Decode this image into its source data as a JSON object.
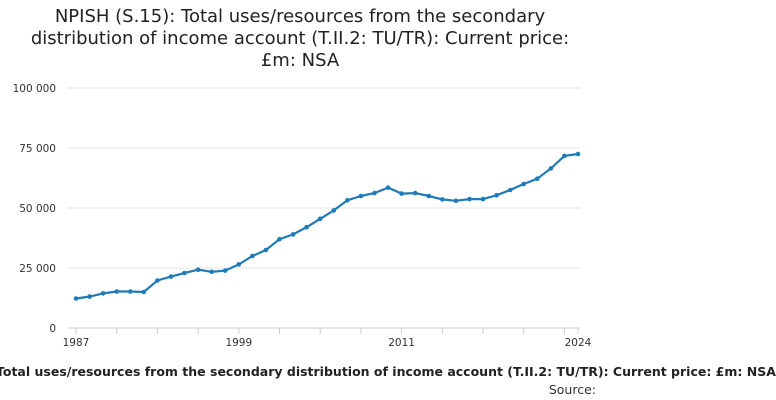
{
  "chart_data": {
    "type": "line",
    "title": "NPISH (S.15): Total uses/resources from the secondary distribution of income account (T.II.2: TU/TR): Current price: £m: NSA",
    "legend_label": "Total uses/resources from the secondary distribution of income account (T.II.2: TU/TR): Current price: £m: NSA",
    "source_label": "Source:",
    "xlabel": "",
    "ylabel": "",
    "x_ticks": [
      "1987",
      "1999",
      "2011",
      "2024"
    ],
    "y_ticks": [
      0,
      25000,
      50000,
      75000,
      100000
    ],
    "y_tick_labels": [
      "0",
      "25 000",
      "50 000",
      "75 000",
      "100 000"
    ],
    "ylim": [
      0,
      100000
    ],
    "xlim": [
      1987,
      2024
    ],
    "grid": true,
    "series_color": "#1f7bb8",
    "series": [
      {
        "name": "Total uses/resources from the secondary distribution of income account (T.II.2: TU/TR): Current price: £m: NSA",
        "x": [
          1987,
          1988,
          1989,
          1990,
          1991,
          1992,
          1993,
          1994,
          1995,
          1996,
          1997,
          1998,
          1999,
          2000,
          2001,
          2002,
          2003,
          2004,
          2005,
          2006,
          2007,
          2008,
          2009,
          2010,
          2011,
          2012,
          2013,
          2014,
          2015,
          2016,
          2017,
          2018,
          2019,
          2020,
          2021,
          2022,
          2023,
          2024
        ],
        "values": [
          12300,
          13100,
          14400,
          15200,
          15200,
          15000,
          19800,
          21400,
          22900,
          24300,
          23400,
          23900,
          26500,
          30000,
          32500,
          37000,
          39000,
          42000,
          45500,
          49000,
          53200,
          55000,
          56200,
          58500,
          56000,
          56200,
          55000,
          53600,
          53000,
          53700,
          53700,
          55300,
          57500,
          60000,
          62200,
          66500,
          71700,
          72500
        ]
      }
    ]
  }
}
